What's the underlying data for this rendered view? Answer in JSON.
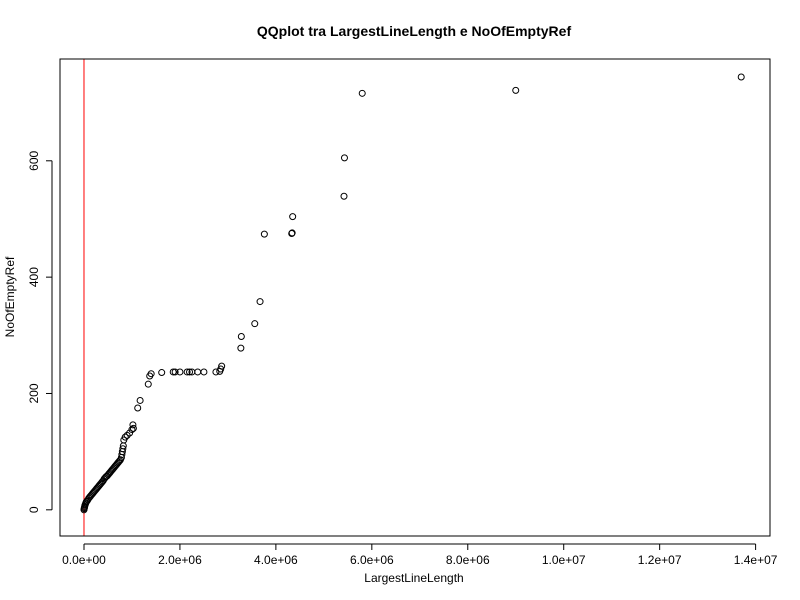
{
  "chart_data": {
    "type": "scatter",
    "title": "QQplot tra LargestLineLength e NoOfEmptyRef",
    "xlabel": "LargestLineLength",
    "ylabel": "NoOfEmptyRef",
    "xlim": [
      -500000,
      14300000
    ],
    "ylim": [
      -45,
      775
    ],
    "xticks": [
      0,
      2000000,
      4000000,
      6000000,
      8000000,
      10000000,
      12000000,
      14000000
    ],
    "xtick_labels": [
      "0.0e+00",
      "2.0e+06",
      "4.0e+06",
      "6.0e+06",
      "8.0e+06",
      "1.0e+07",
      "1.2e+07",
      "1.4e+07"
    ],
    "yticks": [
      0,
      200,
      400,
      600
    ],
    "ytick_labels": [
      "0",
      "200",
      "400",
      "600"
    ],
    "grid": false,
    "point_color": "#000000",
    "reference_line": {
      "x": 0,
      "color": "#ff0000"
    },
    "series": [
      {
        "x": [
          0,
          5000,
          10000,
          15000,
          20000,
          30000,
          40000,
          50000,
          60000,
          80000,
          100000,
          120000,
          140000,
          160000,
          180000,
          200000,
          220000,
          240000,
          260000,
          280000,
          300000,
          320000,
          340000,
          360000,
          380000,
          400000,
          420000,
          440000,
          460000,
          480000,
          500000,
          520000,
          540000,
          560000,
          580000,
          600000,
          620000,
          640000,
          660000,
          680000,
          700000,
          720000,
          740000,
          760000,
          780000,
          790000,
          800000,
          810000,
          820000,
          830000,
          860000,
          900000,
          950000,
          1000000,
          1020000,
          1030000,
          1120000,
          1170000,
          1340000,
          1370000,
          1400000,
          1620000,
          1860000,
          1900000,
          2000000,
          2150000,
          2200000,
          2250000,
          2370000,
          2500000,
          2750000,
          2830000,
          2850000,
          2870000,
          3270000,
          3280000,
          3560000,
          3670000,
          3760000,
          4330000,
          4340000,
          4350000,
          5420000,
          5430000,
          5800000,
          9000000,
          13700000
        ],
        "y": [
          0,
          2,
          4,
          6,
          8,
          10,
          12,
          14,
          15,
          17,
          20,
          22,
          24,
          26,
          28,
          30,
          32,
          34,
          36,
          38,
          40,
          42,
          44,
          46,
          48,
          50,
          53,
          55,
          57,
          58,
          60,
          62,
          64,
          66,
          68,
          70,
          72,
          74,
          76,
          78,
          80,
          82,
          84,
          86,
          90,
          95,
          100,
          105,
          110,
          120,
          125,
          128,
          132,
          138,
          146,
          140,
          175,
          188,
          216,
          230,
          234,
          236,
          237,
          237,
          237,
          237,
          237,
          237,
          237,
          237,
          237,
          238,
          242,
          247,
          278,
          298,
          320,
          358,
          474,
          475,
          476,
          504,
          539,
          605,
          716,
          721,
          744
        ]
      }
    ]
  }
}
